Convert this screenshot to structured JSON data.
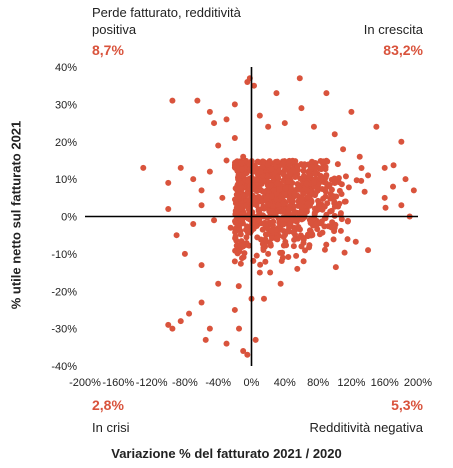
{
  "quadrants": {
    "top_left": {
      "label": "Perde fatturato, redditività positiva",
      "pct": "8,7%"
    },
    "top_right": {
      "label": "In crescita",
      "pct": "83,2%"
    },
    "bottom_left": {
      "label": "In crisi",
      "pct": "2,8%"
    },
    "bottom_right": {
      "label": "Redditività negativa",
      "pct": "5,3%"
    }
  },
  "colors": {
    "points": "#d9533c",
    "axes": "#000000",
    "pct_text": "#d9533c"
  },
  "chart_data": {
    "type": "scatter",
    "xlabel": "Variazione % del fatturato 2021 / 2020",
    "ylabel": "% utile netto sul fatturato 2021",
    "xlim": [
      -200,
      200
    ],
    "ylim": [
      -40,
      40
    ],
    "x_ticks": [
      "-200%",
      "-160%",
      "-120%",
      "-80%",
      "-40%",
      "0%",
      "40%",
      "80%",
      "120%",
      "160%",
      "200%"
    ],
    "y_ticks": [
      "-40%",
      "-30%",
      "-20%",
      "-10%",
      "0%",
      "10%",
      "20%",
      "30%",
      "40%"
    ],
    "grid": false,
    "points": [
      [
        -95,
        31
      ],
      [
        -65,
        31
      ],
      [
        -50,
        28
      ],
      [
        -45,
        25
      ],
      [
        -30,
        26
      ],
      [
        -20,
        30
      ],
      [
        -5,
        36
      ],
      [
        -2,
        37
      ],
      [
        3,
        35
      ],
      [
        58,
        37
      ],
      [
        30,
        33
      ],
      [
        90,
        33
      ],
      [
        120,
        28
      ],
      [
        150,
        24
      ],
      [
        180,
        20
      ],
      [
        -130,
        13
      ],
      [
        -100,
        9
      ],
      [
        -85,
        13
      ],
      [
        -70,
        10
      ],
      [
        -60,
        7
      ],
      [
        -50,
        12
      ],
      [
        -40,
        19
      ],
      [
        -30,
        15
      ],
      [
        -20,
        21
      ],
      [
        -10,
        16
      ],
      [
        10,
        27
      ],
      [
        20,
        24
      ],
      [
        40,
        25
      ],
      [
        60,
        29
      ],
      [
        75,
        24
      ],
      [
        100,
        22
      ],
      [
        110,
        18
      ],
      [
        130,
        16
      ],
      [
        140,
        11
      ],
      [
        160,
        13
      ],
      [
        170,
        8
      ],
      [
        185,
        10
      ],
      [
        195,
        7
      ],
      [
        -100,
        2
      ],
      [
        -90,
        -5
      ],
      [
        -70,
        -2
      ],
      [
        -60,
        3
      ],
      [
        -45,
        -1
      ],
      [
        -35,
        5
      ],
      [
        -25,
        -3
      ],
      [
        160,
        5
      ],
      [
        180,
        3
      ],
      [
        190,
        0
      ],
      [
        -80,
        -10
      ],
      [
        -60,
        -13
      ],
      [
        -40,
        -18
      ],
      [
        -20,
        -12
      ],
      [
        -10,
        -8
      ],
      [
        140,
        -9
      ],
      [
        100,
        -3
      ],
      [
        70,
        -5
      ],
      [
        -100,
        -29
      ],
      [
        -95,
        -30
      ],
      [
        -75,
        -26
      ],
      [
        -60,
        -23
      ],
      [
        -55,
        -33
      ],
      [
        -30,
        -34
      ],
      [
        -15,
        -30
      ],
      [
        -10,
        -36
      ],
      [
        -5,
        -37
      ],
      [
        5,
        -33
      ],
      [
        15,
        -22
      ],
      [
        35,
        -18
      ],
      [
        55,
        -14
      ],
      [
        -20,
        -25
      ],
      [
        0,
        -22
      ],
      [
        10,
        -15
      ],
      [
        20,
        -10
      ],
      [
        30,
        -6
      ],
      [
        45,
        -4
      ],
      [
        60,
        -8
      ],
      [
        -50,
        -30
      ],
      [
        -85,
        -28
      ]
    ],
    "cluster": {
      "center": [
        30,
        5
      ],
      "spread_x": 40,
      "spread_y": 7,
      "count": 900
    }
  }
}
